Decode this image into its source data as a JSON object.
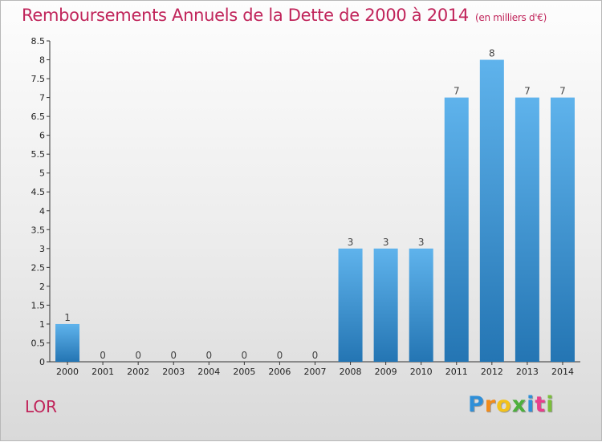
{
  "header": {
    "title": "Remboursements Annuels de la Dette de 2000 à 2014",
    "unit": "(en milliers d'€)"
  },
  "footer": {
    "place": "LOR",
    "brand_letters": [
      "P",
      "r",
      "o",
      "x",
      "i",
      "t",
      "i"
    ],
    "brand_colors": [
      "#2f8fd8",
      "#f28c1b",
      "#f2c21b",
      "#4caf3c",
      "#2f8fd8",
      "#e83e8c",
      "#7bbf3a"
    ]
  },
  "colors": {
    "bar_top": "#5fb3ec",
    "bar_bottom": "#2475b3",
    "title": "#c0245a",
    "axis_text": "#222222"
  },
  "chart_data": {
    "type": "bar",
    "title": "Remboursements Annuels de la Dette de 2000 à 2014",
    "xlabel": "",
    "ylabel": "",
    "categories": [
      "2000",
      "2001",
      "2002",
      "2003",
      "2004",
      "2005",
      "2006",
      "2007",
      "2008",
      "2009",
      "2010",
      "2011",
      "2012",
      "2013",
      "2014"
    ],
    "values": [
      1,
      0,
      0,
      0,
      0,
      0,
      0,
      0,
      3,
      3,
      3,
      7,
      8,
      7,
      7
    ],
    "value_labels": [
      "1",
      "0",
      "0",
      "0",
      "0",
      "0",
      "0",
      "0",
      "3",
      "3",
      "3",
      "7",
      "8",
      "7",
      "7"
    ],
    "ylim": [
      0,
      8.5
    ],
    "yticks": [
      0,
      0.5,
      1,
      1.5,
      2,
      2.5,
      3,
      3.5,
      4,
      4.5,
      5,
      5.5,
      6,
      6.5,
      7,
      7.5,
      8,
      8.5
    ],
    "ytick_labels": [
      "0",
      "0.5",
      "1",
      "1.5",
      "2",
      "2.5",
      "3",
      "3.5",
      "4",
      "4.5",
      "5",
      "5.5",
      "6",
      "6.5",
      "7",
      "7.5",
      "8",
      "8.5"
    ],
    "grid": false,
    "legend": "none"
  }
}
